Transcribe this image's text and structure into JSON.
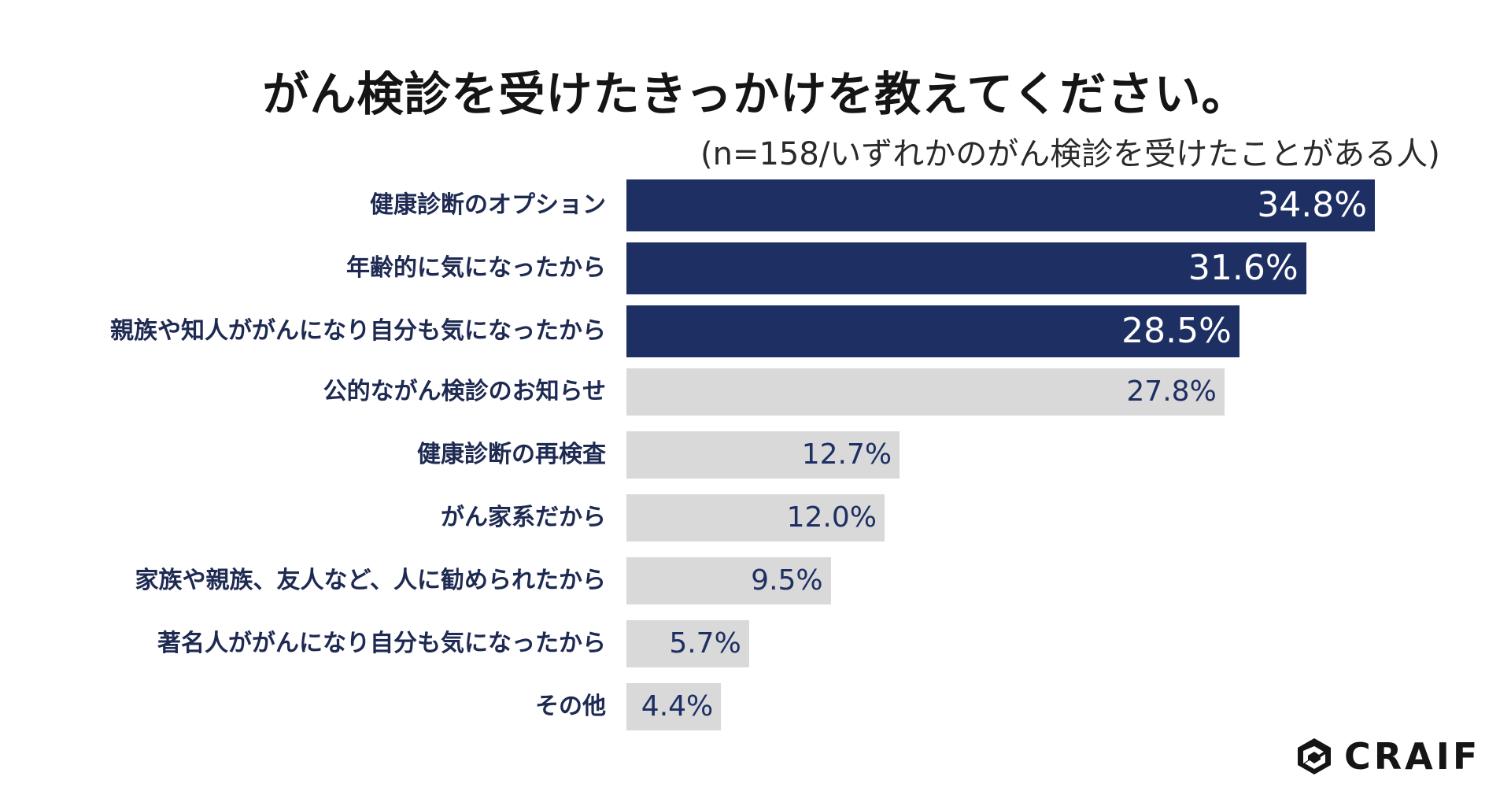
{
  "chart_data": {
    "type": "bar",
    "orientation": "horizontal",
    "title": "がん検診を受けたきっかけを教えてください。",
    "subtitle": "(n=158/いずれかのがん検診を受けたことがある人)",
    "categories": [
      "健康診断のオプション",
      "年齢的に気になったから",
      "親族や知人ががんになり自分も気になったから",
      "公的ながん検診のお知らせ",
      "健康診断の再検査",
      "がん家系だから",
      "家族や親族、友人など、人に勧められたから",
      "著名人ががんになり自分も気になったから",
      "その他"
    ],
    "values": [
      34.8,
      31.6,
      28.5,
      27.8,
      12.7,
      12.0,
      9.5,
      5.7,
      4.4
    ],
    "value_labels": [
      "34.8%",
      "31.6%",
      "28.5%",
      "27.8%",
      "12.7%",
      "12.0%",
      "9.5%",
      "5.7%",
      "4.4%"
    ],
    "highlight_top": 3,
    "colors": {
      "highlight": "#1e2f63",
      "normal": "#d9d9d9",
      "normal_text": "#1e2f63",
      "highlight_text": "#ffffff"
    },
    "grid": false,
    "legend": "none"
  },
  "logo": {
    "text": "CRAIF",
    "icon": "craif-logo-icon"
  }
}
